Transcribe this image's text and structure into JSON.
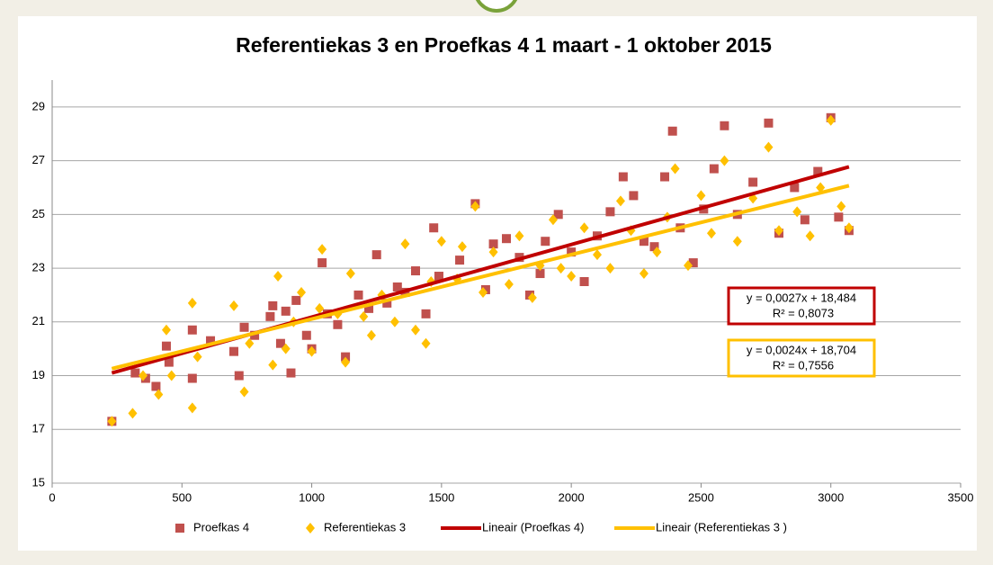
{
  "chart_data": {
    "type": "scatter",
    "title": "Referentiekas 3 en Proefkas 4   1 maart  -  1 oktober 2015",
    "xlim": [
      0,
      3500
    ],
    "xticks": [
      0,
      500,
      1000,
      1500,
      2000,
      2500,
      3000,
      3500
    ],
    "ylim": [
      15,
      30
    ],
    "yticks": [
      15,
      17,
      19,
      21,
      23,
      25,
      27,
      29
    ],
    "grid": true,
    "series": [
      {
        "name": "Proefkas 4",
        "color": "#c0504d",
        "marker": "square",
        "x": [
          230,
          320,
          360,
          400,
          440,
          450,
          540,
          540,
          610,
          700,
          720,
          740,
          780,
          840,
          850,
          880,
          900,
          920,
          940,
          980,
          1000,
          1040,
          1060,
          1100,
          1130,
          1180,
          1220,
          1250,
          1290,
          1330,
          1360,
          1400,
          1440,
          1470,
          1490,
          1570,
          1630,
          1670,
          1700,
          1750,
          1800,
          1840,
          1880,
          1900,
          1950,
          2000,
          2050,
          2100,
          2150,
          2200,
          2240,
          2280,
          2320,
          2360,
          2390,
          2420,
          2470,
          2510,
          2550,
          2590,
          2640,
          2700,
          2760,
          2800,
          2860,
          2900,
          2950,
          3000,
          3030,
          3070
        ],
        "values": [
          17.3,
          19.1,
          18.9,
          18.6,
          20.1,
          19.5,
          18.9,
          20.7,
          20.3,
          19.9,
          19.0,
          20.8,
          20.5,
          21.2,
          21.6,
          20.2,
          21.4,
          19.1,
          21.8,
          20.5,
          20.0,
          23.2,
          21.3,
          20.9,
          19.7,
          22.0,
          21.5,
          23.5,
          21.7,
          22.3,
          22.1,
          22.9,
          21.3,
          24.5,
          22.7,
          23.3,
          25.4,
          22.2,
          23.9,
          24.1,
          23.4,
          22.0,
          22.8,
          24.0,
          25.0,
          23.6,
          22.5,
          24.2,
          25.1,
          26.4,
          25.7,
          24.0,
          23.8,
          26.4,
          28.1,
          24.5,
          23.2,
          25.2,
          26.7,
          28.3,
          25.0,
          26.2,
          28.4,
          24.3,
          26.0,
          24.8,
          26.6,
          28.6,
          24.9,
          24.4
        ]
      },
      {
        "name": "Referentiekas 3",
        "color": "#ffc000",
        "marker": "diamond",
        "x": [
          230,
          310,
          350,
          410,
          440,
          460,
          540,
          540,
          560,
          700,
          740,
          760,
          850,
          870,
          900,
          930,
          960,
          1000,
          1030,
          1040,
          1100,
          1130,
          1150,
          1200,
          1230,
          1270,
          1320,
          1360,
          1400,
          1440,
          1460,
          1500,
          1560,
          1580,
          1630,
          1660,
          1700,
          1760,
          1800,
          1850,
          1880,
          1930,
          1960,
          2000,
          2050,
          2100,
          2150,
          2190,
          2230,
          2280,
          2330,
          2370,
          2400,
          2450,
          2500,
          2540,
          2590,
          2640,
          2700,
          2760,
          2800,
          2870,
          2920,
          2960,
          3000,
          3040,
          3070
        ],
        "values": [
          17.3,
          17.6,
          19.0,
          18.3,
          20.7,
          19.0,
          17.8,
          21.7,
          19.7,
          21.6,
          18.4,
          20.2,
          19.4,
          22.7,
          20.0,
          21.0,
          22.1,
          19.9,
          21.5,
          23.7,
          21.3,
          19.5,
          22.8,
          21.2,
          20.5,
          22.0,
          21.0,
          23.9,
          20.7,
          20.2,
          22.5,
          24.0,
          22.6,
          23.8,
          25.3,
          22.1,
          23.6,
          22.4,
          24.2,
          21.9,
          23.1,
          24.8,
          23.0,
          22.7,
          24.5,
          23.5,
          23.0,
          25.5,
          24.4,
          22.8,
          23.6,
          24.9,
          26.7,
          23.1,
          25.7,
          24.3,
          27.0,
          24.0,
          25.6,
          27.5,
          24.4,
          25.1,
          24.2,
          26.0,
          28.5,
          25.3,
          24.5
        ]
      }
    ],
    "trendlines": [
      {
        "name": "Lineair (Proefkas 4)",
        "color": "#c00000",
        "x": [
          230,
          3070
        ],
        "values": [
          19.1,
          26.77
        ]
      },
      {
        "name": "Lineair (Referentiekas 3 )",
        "color": "#ffc000",
        "x": [
          230,
          3070
        ],
        "values": [
          19.26,
          26.07
        ]
      }
    ],
    "annotations": [
      {
        "color": "#c00000",
        "lines": [
          "y = 0,0027x + 18,484",
          "R² = 0,8073"
        ]
      },
      {
        "color": "#ffc000",
        "lines": [
          "y = 0,0024x + 18,704",
          "R² = 0,7556"
        ]
      }
    ]
  }
}
